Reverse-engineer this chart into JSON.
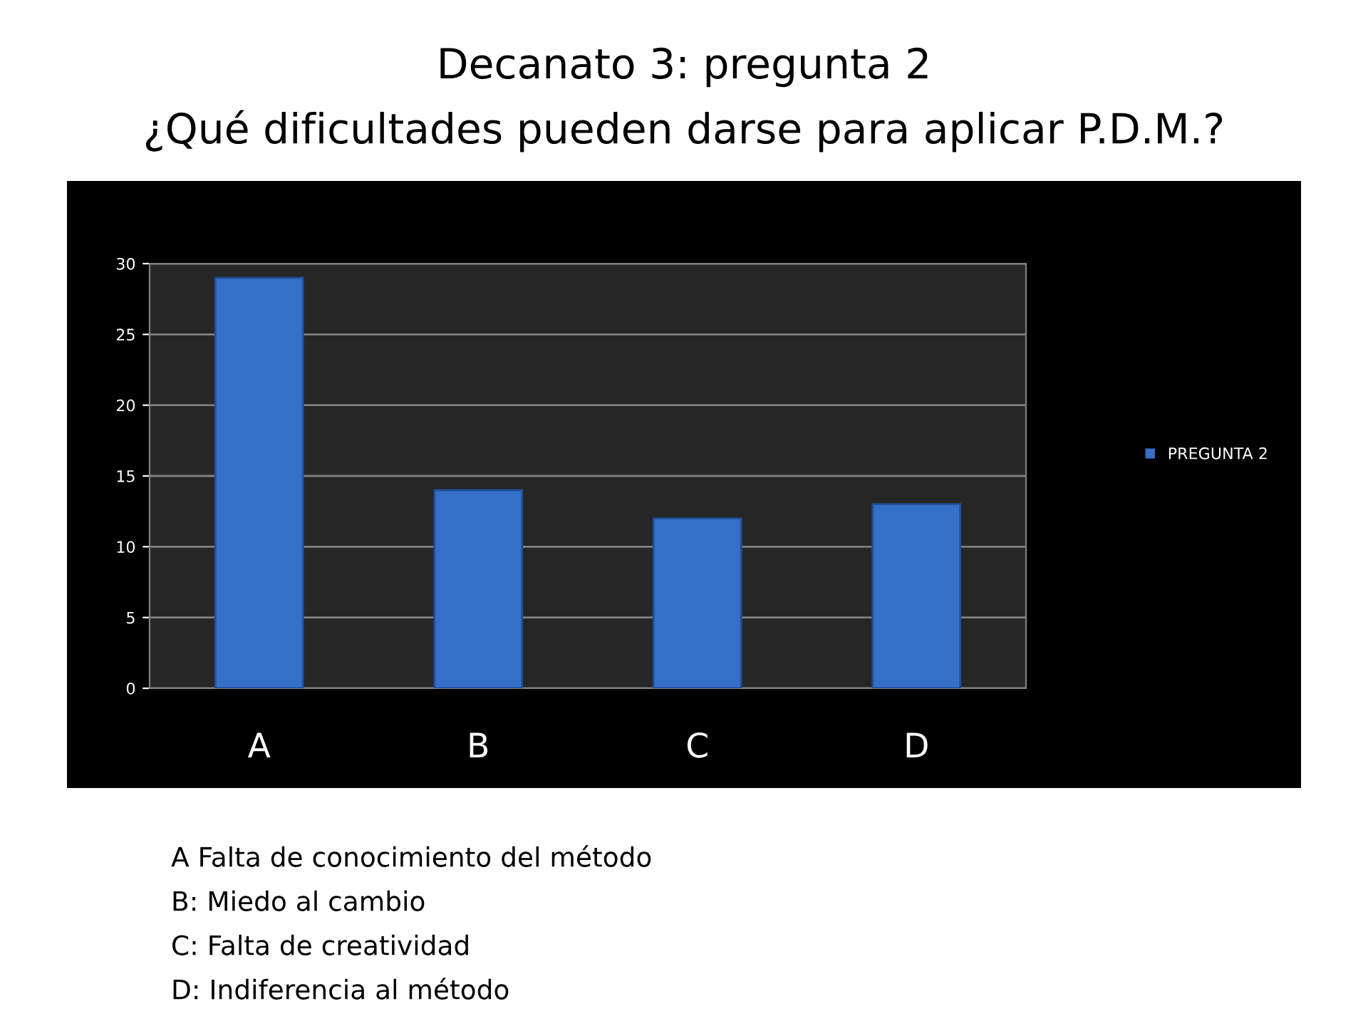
{
  "chart_data": {
    "type": "bar",
    "title": "Decanato 3: pregunta 2",
    "subtitle": "¿Qué dificultades pueden darse para aplicar P.D.M.?",
    "categories": [
      "A",
      "B",
      "C",
      "D"
    ],
    "series": [
      {
        "name": "PREGUNTA 2",
        "color": "#3570c8",
        "values": [
          29,
          14,
          12,
          13
        ]
      }
    ],
    "ylim": [
      0,
      30
    ],
    "yticks": [
      0,
      5,
      10,
      15,
      20,
      25,
      30
    ],
    "grid": "y",
    "legend": "right",
    "annotations": [
      "A Falta de conocimiento del método",
      "B: Miedo al cambio",
      "C: Falta de creatividad",
      "D: Indiferencia al método"
    ]
  }
}
